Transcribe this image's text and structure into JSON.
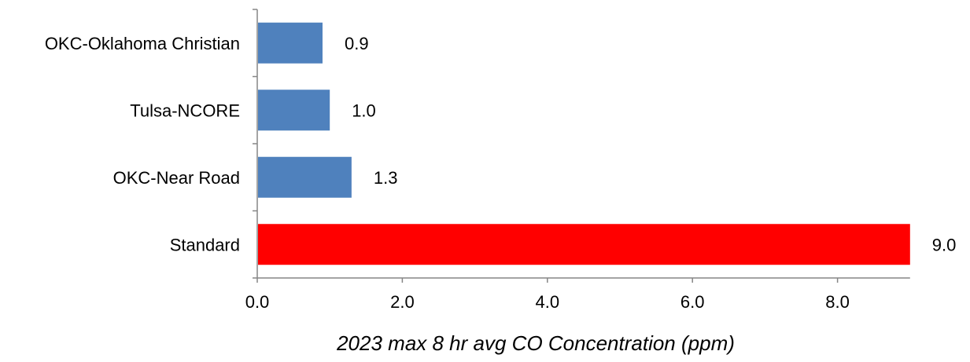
{
  "chart_data": {
    "type": "bar",
    "orientation": "horizontal",
    "categories": [
      "OKC-Oklahoma Christian",
      "Tulsa-NCORE",
      "OKC-Near Road",
      "Standard"
    ],
    "values": [
      0.9,
      1.0,
      1.3,
      9.0
    ],
    "value_labels": [
      "0.9",
      "1.0",
      "1.3",
      "9.0"
    ],
    "bar_colors": [
      "#4f81bd",
      "#4f81bd",
      "#4f81bd",
      "#ff0000"
    ],
    "title": "",
    "xlabel": "2023 max 8 hr avg CO Concentration (ppm)",
    "ylabel": "",
    "xlim": [
      0,
      9.0
    ],
    "x_ticks": [
      0,
      2,
      4,
      6,
      8
    ],
    "x_tick_labels": [
      "0.0",
      "2.0",
      "4.0",
      "6.0",
      "8.0"
    ],
    "grid": false,
    "legend": "none",
    "axis_color": "#868686"
  }
}
